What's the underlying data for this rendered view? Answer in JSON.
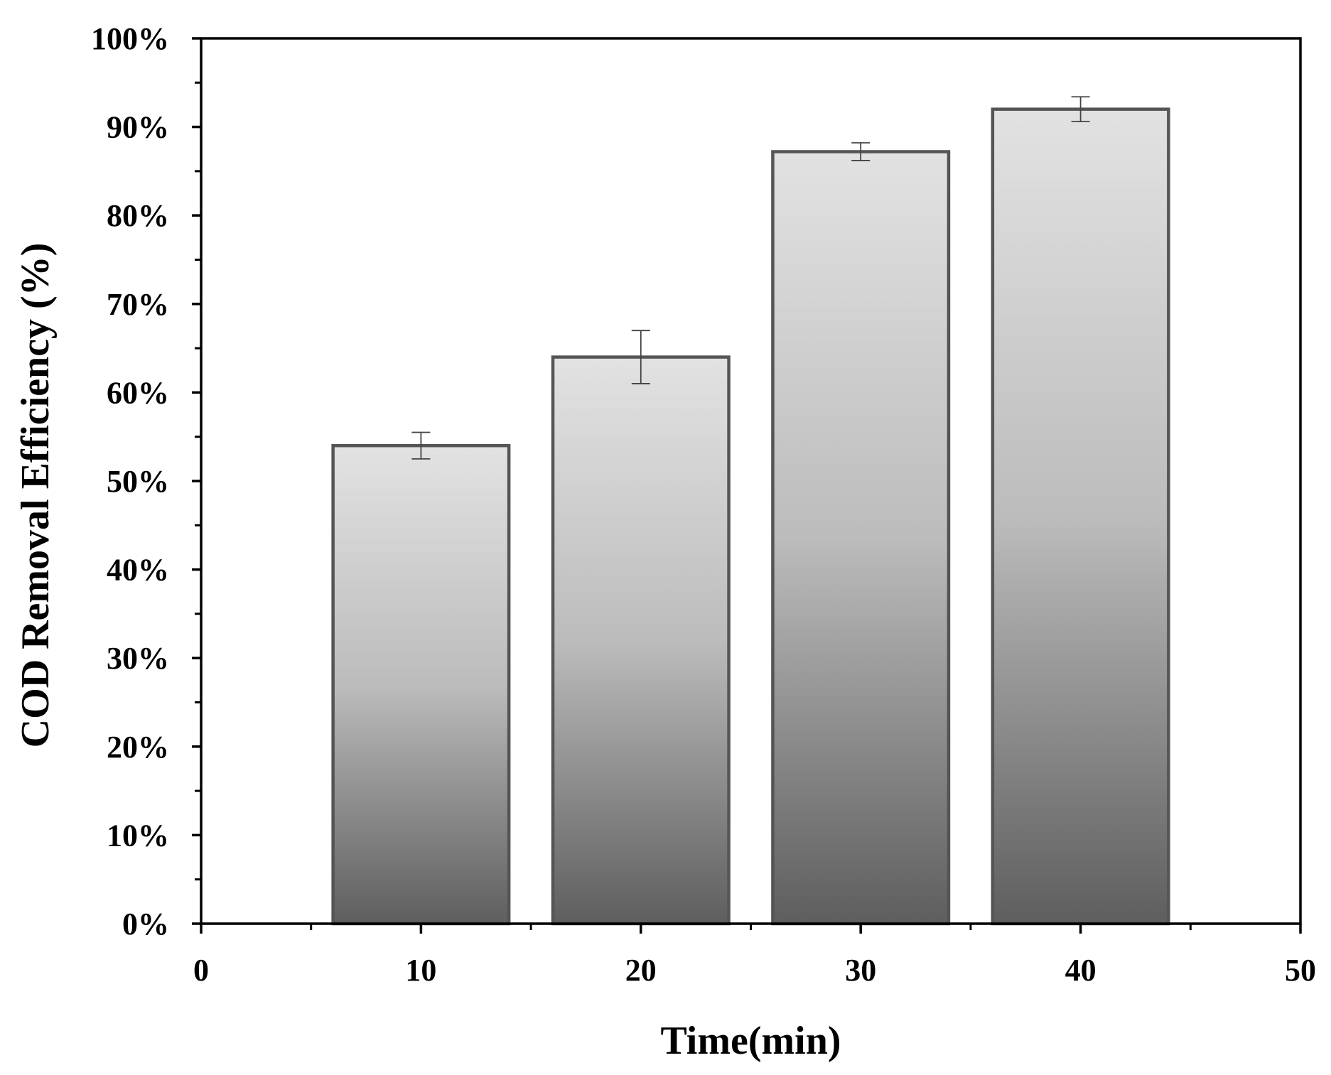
{
  "chart_data": {
    "type": "bar",
    "title": "",
    "xlabel": "Time(min)",
    "ylabel": "COD Removal Efficiency (%)",
    "x": [
      10,
      20,
      30,
      40
    ],
    "values": [
      54,
      64,
      87.2,
      92
    ],
    "errors": [
      1.5,
      3,
      1,
      1.4
    ],
    "bar_width": 8,
    "xlim": [
      0,
      50
    ],
    "ylim": [
      0,
      100
    ],
    "x_ticks": [
      0,
      10,
      20,
      30,
      40,
      50
    ],
    "x_tick_labels": [
      "0",
      "10",
      "20",
      "30",
      "40",
      "50"
    ],
    "y_ticks": [
      0,
      10,
      20,
      30,
      40,
      50,
      60,
      70,
      80,
      90,
      100
    ],
    "y_tick_labels": [
      "0%",
      "10%",
      "20%",
      "30%",
      "40%",
      "50%",
      "60%",
      "70%",
      "80%",
      "90%",
      "100%"
    ],
    "grid": false,
    "legend": "none",
    "colors": {
      "bar_top": "#e2e2e2",
      "bar_mid": "#bcbcbc",
      "bar_bottom": "#5e5e5e",
      "bar_edge": "#555555",
      "axis": "#000000"
    }
  }
}
